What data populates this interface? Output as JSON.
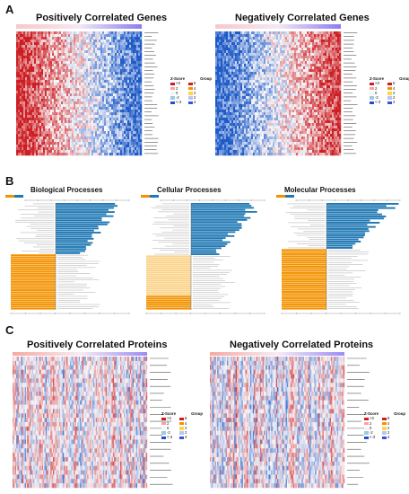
{
  "panel_a": {
    "letter": "A",
    "left_title": "Positively Correlated Genes",
    "right_title": "Negatively Correlated Genes"
  },
  "panel_b": {
    "letter": "B",
    "titles": [
      "Biological Processes",
      "Cellular Processes",
      "Molecular Processes"
    ]
  },
  "panel_c": {
    "letter": "C",
    "left_title": "Positively Correlated Proteins",
    "right_title": "Negatively Correlated Proteins"
  },
  "legend": {
    "zscore_title": "Z-Score",
    "group_title": "Group",
    "zscore_labels": [
      ">3",
      "2",
      "0",
      "-2",
      "<-3"
    ],
    "group_labels": [
      "6",
      "4",
      "2",
      "2",
      "4"
    ]
  },
  "colors": {
    "red": "#d7191c",
    "blue": "#2c7bb6",
    "bar_blue": "#1f78b4",
    "bar_orange": "#f39200",
    "bar_pale_orange": "#fbd38a",
    "group_bar": "#7b68ee"
  }
}
